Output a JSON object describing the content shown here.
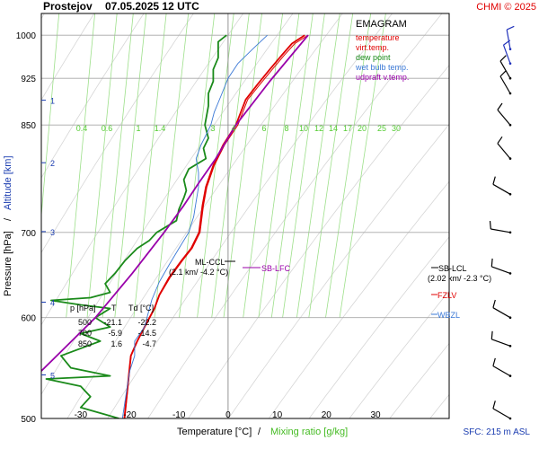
{
  "header": {
    "station": "Prostejov",
    "datetime": "07.05.2025 12 UTC",
    "credit": "CHMI © 2025"
  },
  "chart_data": {
    "type": "line",
    "title": "EMAGRAM",
    "xlabel_temp": "Temperature [°C]",
    "xlabel_sep": "/",
    "xlabel_mix": "Mixing ratio [g/kg]",
    "ylabel_pressure": "Pressure [hPa]",
    "ylabel_sep": "/",
    "ylabel_alt": "Altitude [km]",
    "xlim": [
      -38,
      45
    ],
    "ylim": [
      1040,
      500
    ],
    "y_scale": "log",
    "x_ticks": [
      -30,
      -20,
      -10,
      0,
      10,
      20,
      30
    ],
    "p_ticks": [
      500,
      600,
      700,
      850,
      925,
      1000
    ],
    "altitude_ticks": [
      {
        "label": "1",
        "p": 889
      },
      {
        "label": "2",
        "p": 794
      },
      {
        "label": "3",
        "p": 701
      },
      {
        "label": "4",
        "p": 617
      },
      {
        "label": "5",
        "p": 541
      }
    ],
    "mixing_ratio_labels": [
      "0.4",
      "0.6",
      "1",
      "1.4",
      "3",
      "4",
      "6",
      "8",
      "10",
      "12",
      "14",
      "17",
      "20",
      "25",
      "30"
    ],
    "legend": [
      {
        "name": "temperature",
        "color": "#e00000"
      },
      {
        "name": "virt.temp.",
        "color": "#e00000"
      },
      {
        "name": "dew point",
        "color": "#1a8a1a"
      },
      {
        "name": "wet bulb temp.",
        "color": "#3a78d6"
      },
      {
        "name": "udpraft v.temp.",
        "color": "#9900aa"
      }
    ],
    "series": [
      {
        "name": "temperature",
        "color": "#e00000",
        "points": [
          [
            15.6,
            1000
          ],
          [
            13,
            985
          ],
          [
            11,
            965
          ],
          [
            8.5,
            940
          ],
          [
            6,
            915
          ],
          [
            3.6,
            890
          ],
          [
            1.6,
            850
          ],
          [
            -1,
            820
          ],
          [
            -3,
            790
          ],
          [
            -4.5,
            760
          ],
          [
            -5.2,
            735
          ],
          [
            -5.9,
            700
          ],
          [
            -7.5,
            680
          ],
          [
            -9.5,
            665
          ],
          [
            -12,
            645
          ],
          [
            -14,
            625
          ],
          [
            -15,
            610
          ],
          [
            -17,
            590
          ],
          [
            -18.5,
            575
          ],
          [
            -19.8,
            560
          ],
          [
            -21.1,
            500
          ]
        ]
      },
      {
        "name": "virt.temp.",
        "color": "#e00000",
        "points": [
          [
            16.3,
            1000
          ],
          [
            13.6,
            985
          ],
          [
            11.5,
            965
          ],
          [
            9,
            940
          ],
          [
            6.5,
            915
          ],
          [
            4,
            890
          ],
          [
            2,
            850
          ],
          [
            -0.7,
            820
          ],
          [
            -2.8,
            790
          ],
          [
            -4.3,
            760
          ],
          [
            -5.0,
            735
          ],
          [
            -5.7,
            700
          ],
          [
            -7.3,
            680
          ],
          [
            -9.3,
            665
          ],
          [
            -11.8,
            645
          ],
          [
            -13.9,
            625
          ],
          [
            -14.9,
            610
          ],
          [
            -16.9,
            590
          ],
          [
            -18.4,
            575
          ],
          [
            -19.7,
            560
          ],
          [
            -21.0,
            500
          ]
        ]
      },
      {
        "name": "dew point",
        "color": "#1a8a1a",
        "points": [
          [
            -0.3,
            1000
          ],
          [
            -2,
            988
          ],
          [
            -2,
            960
          ],
          [
            -3,
            940
          ],
          [
            -3,
            920
          ],
          [
            -4,
            900
          ],
          [
            -4,
            880
          ],
          [
            -4.7,
            850
          ],
          [
            -4,
            830
          ],
          [
            -5,
            815
          ],
          [
            -4.5,
            800
          ],
          [
            -8,
            785
          ],
          [
            -9,
            770
          ],
          [
            -8.5,
            755
          ],
          [
            -9,
            745
          ],
          [
            -10,
            730
          ],
          [
            -10.5,
            715
          ],
          [
            -14.5,
            700
          ],
          [
            -16,
            690
          ],
          [
            -18.5,
            680
          ],
          [
            -21,
            665
          ],
          [
            -23,
            650
          ],
          [
            -25,
            638
          ],
          [
            -24,
            628
          ],
          [
            -28,
            622
          ],
          [
            -36,
            619
          ],
          [
            -30,
            614
          ],
          [
            -24,
            610
          ],
          [
            -27,
            600
          ],
          [
            -24,
            590
          ],
          [
            -30,
            583
          ],
          [
            -26,
            575
          ],
          [
            -34,
            560
          ],
          [
            -32,
            548
          ],
          [
            -24,
            540
          ],
          [
            -37,
            537
          ],
          [
            -30,
            530
          ],
          [
            -28,
            520
          ],
          [
            -30,
            510
          ],
          [
            -22.2,
            500
          ]
        ]
      },
      {
        "name": "wet bulb temp.",
        "color": "#3a78d6",
        "points": [
          [
            8,
            1000
          ],
          [
            5,
            975
          ],
          [
            2,
            950
          ],
          [
            0,
            925
          ],
          [
            -1.5,
            895
          ],
          [
            -2.8,
            870
          ],
          [
            -3.5,
            850
          ],
          [
            -5.5,
            820
          ],
          [
            -6.5,
            800
          ],
          [
            -6,
            780
          ],
          [
            -6,
            760
          ],
          [
            -6.5,
            740
          ],
          [
            -7,
            720
          ],
          [
            -8,
            700
          ],
          [
            -10,
            680
          ],
          [
            -12,
            660
          ],
          [
            -14,
            640
          ],
          [
            -15.5,
            620
          ],
          [
            -16.5,
            600
          ],
          [
            -17,
            590
          ],
          [
            -19,
            575
          ],
          [
            -19,
            560
          ],
          [
            -20,
            545
          ],
          [
            -20.5,
            530
          ],
          [
            -21.5,
            500
          ]
        ]
      },
      {
        "name": "udpraft v.temp.",
        "color": "#9900aa",
        "points": [
          [
            16.3,
            1000
          ],
          [
            8.5,
            920
          ],
          [
            1.6,
            850
          ],
          [
            -2.5,
            800
          ],
          [
            -6,
            765
          ],
          [
            -9,
            735
          ],
          [
            -13,
            700
          ],
          [
            -19.5,
            650
          ],
          [
            -27,
            600
          ],
          [
            -39,
            540
          ]
        ]
      }
    ],
    "annotations": {
      "ml_ccl": "ML-CCL",
      "ml_ccl_sub": "(2.1 km/ -4.2 °C)",
      "sb_lfc": "SB-LFC",
      "sb_lcl": "SB-LCL",
      "sb_lcl_sub": "(2.02 km/ -2.3 °C)",
      "fzlv": "FZLV",
      "wbzl": "WBZL"
    },
    "table": {
      "headers": [
        "p [hPa]",
        "T",
        "Td [°C]"
      ],
      "rows": [
        [
          "500",
          "-21.1",
          "-22.2"
        ],
        [
          "700",
          "-5.9",
          "-14.5"
        ],
        [
          "850",
          "1.6",
          "-4.7"
        ]
      ]
    },
    "footer": "SFC: 215 m ASL",
    "wind_barb_pressures": [
      500,
      540,
      570,
      600,
      650,
      700,
      750,
      800,
      850,
      900,
      925,
      950,
      975
    ],
    "grid": true
  }
}
